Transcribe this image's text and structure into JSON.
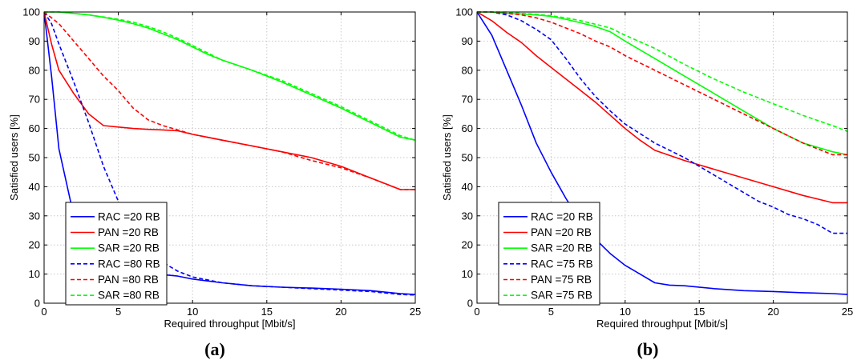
{
  "chart_data": [
    {
      "type": "line",
      "panel_label": "(a)",
      "xlabel": "Required throughput [Mbit/s]",
      "ylabel": "Satisfied users [%]",
      "xlim": [
        0,
        25
      ],
      "ylim": [
        0,
        100
      ],
      "xticks": [
        0,
        5,
        10,
        15,
        20,
        25
      ],
      "yticks": [
        0,
        10,
        20,
        30,
        40,
        50,
        60,
        70,
        80,
        90,
        100
      ],
      "grid": true,
      "legend_position": "lower-left",
      "series": [
        {
          "name": "RAC =20 RB",
          "color": "#0000ff",
          "dash": "solid",
          "x": [
            0,
            0.5,
            1,
            2,
            3,
            4,
            5,
            6,
            7,
            8,
            9,
            10,
            12,
            14,
            16,
            18,
            20,
            22,
            24,
            25
          ],
          "y": [
            100,
            78,
            53,
            30,
            20,
            15,
            12.5,
            11,
            10.3,
            9.8,
            9.3,
            8.3,
            7,
            6,
            5.5,
            5.2,
            4.8,
            4.3,
            3.3,
            3
          ]
        },
        {
          "name": "PAN =20 RB",
          "color": "#ff0000",
          "dash": "solid",
          "x": [
            0,
            0.5,
            1,
            2,
            3,
            4,
            5,
            6,
            7,
            8,
            9,
            10,
            12,
            14,
            16,
            18,
            20,
            22,
            24,
            25
          ],
          "y": [
            100,
            89,
            80,
            72,
            65,
            61,
            60.5,
            60,
            59.7,
            59.5,
            59.2,
            58,
            56,
            54,
            52,
            50,
            47,
            43,
            39,
            39
          ]
        },
        {
          "name": "SAR =20 RB",
          "color": "#00ff00",
          "dash": "solid",
          "x": [
            0,
            1,
            2,
            3,
            4,
            5,
            6,
            7,
            8,
            9,
            10,
            11,
            12,
            14,
            16,
            18,
            20,
            22,
            24,
            25
          ],
          "y": [
            100,
            100,
            99.5,
            99,
            98.2,
            97.2,
            96,
            94.5,
            92.5,
            90.5,
            88,
            85.5,
            83.5,
            80,
            76,
            71.5,
            67,
            62,
            57,
            56
          ]
        },
        {
          "name": "RAC =80 RB",
          "color": "#0000ff",
          "dash": "dashed",
          "x": [
            0,
            0.5,
            1,
            2,
            3,
            4,
            5,
            6,
            7,
            8,
            9,
            10,
            12,
            14,
            16,
            18,
            20,
            22,
            24,
            25
          ],
          "y": [
            100,
            96,
            89,
            76,
            62,
            47,
            35,
            25,
            18,
            14,
            11,
            9,
            7,
            6,
            5.5,
            5,
            4.5,
            4,
            3,
            2.8
          ]
        },
        {
          "name": "PAN =80 RB",
          "color": "#ff0000",
          "dash": "dashed",
          "x": [
            0,
            1,
            2,
            3,
            4,
            5,
            6,
            7,
            8,
            9,
            10,
            12,
            14,
            16,
            18,
            20,
            22,
            24,
            25
          ],
          "y": [
            100,
            96,
            90,
            84,
            78,
            73,
            67,
            63,
            61,
            59.5,
            58,
            56,
            54,
            52,
            49,
            46.5,
            43,
            39,
            39
          ]
        },
        {
          "name": "SAR =80 RB",
          "color": "#00ff00",
          "dash": "dashed",
          "x": [
            0,
            1,
            2,
            3,
            4,
            5,
            6,
            7,
            8,
            9,
            10,
            11,
            12,
            14,
            16,
            18,
            20,
            22,
            24,
            25
          ],
          "y": [
            100,
            100,
            99.5,
            99,
            98.3,
            97.5,
            96.5,
            95,
            93.2,
            91,
            88.5,
            86,
            83.5,
            80,
            76.5,
            72,
            67.5,
            62.5,
            57.5,
            56
          ]
        }
      ]
    },
    {
      "type": "line",
      "panel_label": "(b)",
      "xlabel": "Required throughput [Mbit/s]",
      "ylabel": "Satisfied users [%]",
      "xlim": [
        0,
        25
      ],
      "ylim": [
        0,
        100
      ],
      "xticks": [
        0,
        5,
        10,
        15,
        20,
        25
      ],
      "yticks": [
        0,
        10,
        20,
        30,
        40,
        50,
        60,
        70,
        80,
        90,
        100
      ],
      "grid": true,
      "legend_position": "lower-left",
      "series": [
        {
          "name": "RAC =20 RB",
          "color": "#0000ff",
          "dash": "solid",
          "x": [
            0,
            1,
            2,
            3,
            4,
            5,
            6,
            7,
            8,
            9,
            10,
            11,
            12,
            13,
            14,
            16,
            18,
            20,
            22,
            24,
            25
          ],
          "y": [
            100,
            92,
            80,
            68,
            55,
            45,
            36,
            28,
            22,
            17,
            13,
            10,
            7,
            6.2,
            6,
            5,
            4.3,
            4,
            3.6,
            3.3,
            3
          ]
        },
        {
          "name": "PAN =20 RB",
          "color": "#ff0000",
          "dash": "solid",
          "x": [
            0,
            1,
            2,
            3,
            4,
            5,
            6,
            7,
            8,
            9,
            10,
            11,
            12,
            14,
            16,
            18,
            20,
            22,
            24,
            25
          ],
          "y": [
            100,
            97,
            93,
            89.5,
            85,
            81,
            77,
            73,
            69,
            64.5,
            60,
            56,
            52.5,
            49,
            46,
            43,
            40,
            37,
            34.5,
            34.5
          ]
        },
        {
          "name": "SAR =20 RB",
          "color": "#00ff00",
          "dash": "solid",
          "x": [
            0,
            1,
            2,
            3,
            4,
            5,
            6,
            7,
            8,
            9,
            10,
            12,
            14,
            16,
            18,
            20,
            22,
            24,
            25
          ],
          "y": [
            100,
            100,
            99.5,
            99.3,
            99,
            98.5,
            97.5,
            96.3,
            95,
            93.2,
            90,
            84,
            78,
            72,
            66,
            60,
            55,
            52,
            51
          ]
        },
        {
          "name": "RAC =75 RB",
          "color": "#0000ff",
          "dash": "dashed",
          "x": [
            0,
            1,
            2,
            3,
            4,
            5,
            6,
            7,
            8,
            9,
            10,
            12,
            14,
            16,
            18,
            19,
            20,
            21,
            22,
            23,
            24,
            25
          ],
          "y": [
            100,
            100,
            99,
            97,
            94,
            90.5,
            84,
            77,
            71,
            66,
            61.5,
            55,
            50,
            44,
            38,
            35,
            33,
            30.5,
            29,
            27,
            24,
            24
          ]
        },
        {
          "name": "PAN =75 RB",
          "color": "#ff0000",
          "dash": "dashed",
          "x": [
            0,
            1,
            2,
            3,
            4,
            5,
            6,
            7,
            8,
            9,
            10,
            12,
            14,
            16,
            18,
            20,
            22,
            24,
            25
          ],
          "y": [
            100,
            100,
            99.5,
            99,
            98,
            96.5,
            94.5,
            92.5,
            90,
            88,
            85,
            80,
            75,
            70,
            65,
            60,
            55,
            51,
            51
          ]
        },
        {
          "name": "SAR =75 RB",
          "color": "#00ff00",
          "dash": "dashed",
          "x": [
            0,
            1,
            2,
            3,
            4,
            5,
            6,
            7,
            8,
            9,
            10,
            12,
            14,
            16,
            18,
            20,
            22,
            24,
            25
          ],
          "y": [
            100,
            100,
            100,
            99.5,
            99.2,
            98.7,
            98,
            97,
            95.8,
            94.5,
            92,
            87.5,
            82,
            77,
            72.5,
            68.5,
            64.5,
            61,
            59
          ]
        }
      ]
    }
  ]
}
